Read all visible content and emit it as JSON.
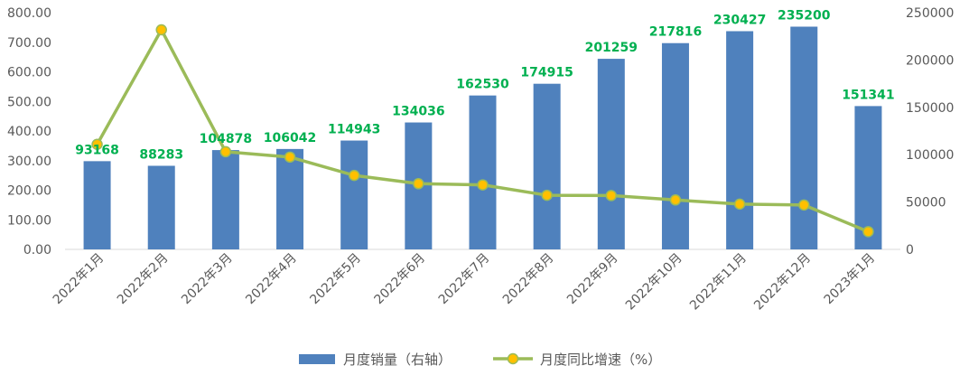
{
  "chart_data": {
    "type": "bar",
    "categories": [
      "2022年1月",
      "2022年2月",
      "2022年3月",
      "2022年4月",
      "2022年5月",
      "2022年6月",
      "2022年7月",
      "2022年8月",
      "2022年9月",
      "2022年10月",
      "2022年11月",
      "2022年12月",
      "2023年1月"
    ],
    "series": [
      {
        "name": "月度销量（右轴）",
        "type": "bar",
        "axis": "right",
        "values": [
          93168,
          88283,
          104878,
          106042,
          114943,
          134036,
          162530,
          174915,
          201259,
          217816,
          230427,
          235200,
          151341
        ],
        "color": "#4F81BD",
        "label_color": "#00B050"
      },
      {
        "name": "月度同比增速（%）",
        "type": "line",
        "axis": "left",
        "values": [
          355,
          742,
          330,
          312,
          250,
          222,
          218,
          183,
          182,
          167,
          153,
          150,
          60
        ],
        "color": "#9BBB59",
        "marker_color": "#FFC000"
      }
    ],
    "left_axis": {
      "ylim": [
        0,
        800
      ],
      "ticks": [
        "0.00",
        "100.00",
        "200.00",
        "300.00",
        "400.00",
        "500.00",
        "600.00",
        "700.00",
        "800.00"
      ]
    },
    "right_axis": {
      "ylim": [
        0,
        250000
      ],
      "ticks": [
        "0",
        "50000",
        "100000",
        "150000",
        "200000",
        "250000"
      ]
    },
    "legend_position": "bottom",
    "grid": false
  }
}
